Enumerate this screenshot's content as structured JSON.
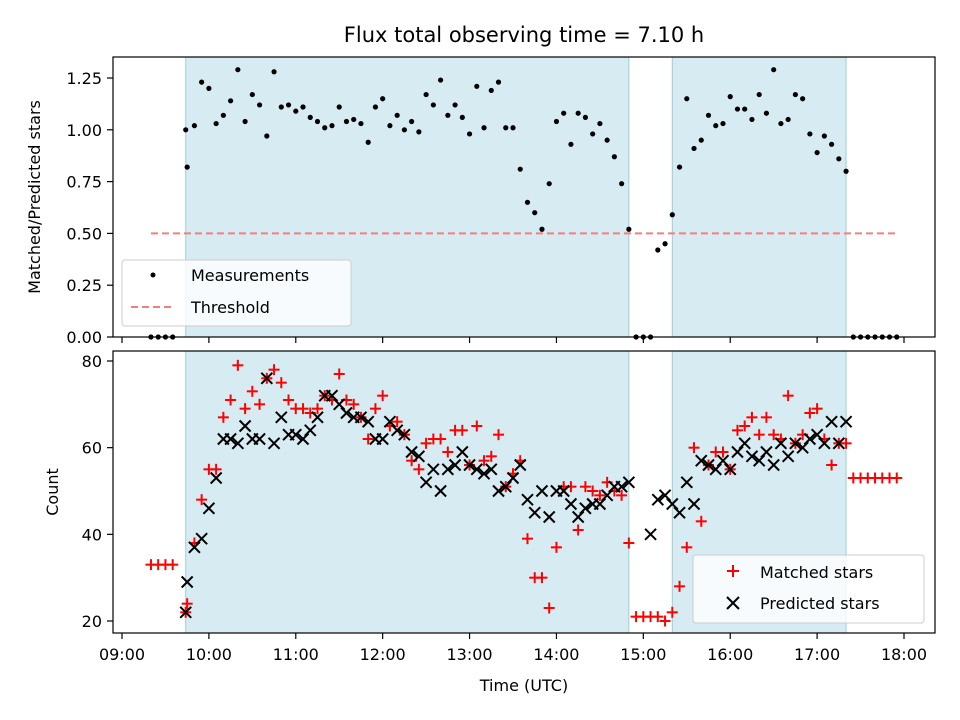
{
  "chart_data": [
    {
      "type": "scatter",
      "title": "Flux total observing time = 7.10 h",
      "ylabel": "Matched/Predicted stars",
      "xlabel": "",
      "x_range": [
        "09:00",
        "18:00"
      ],
      "ylim": [
        0,
        1.37
      ],
      "yticks": [
        0.0,
        0.25,
        0.5,
        0.75,
        1.0,
        1.25
      ],
      "ytick_labels": [
        "0.00",
        "0.25",
        "0.50",
        "0.75",
        "1.00",
        "1.25"
      ],
      "grid": false,
      "legend": "lower-left",
      "observing_periods": [
        [
          "09:44",
          "14:50"
        ],
        [
          "15:20",
          "17:20"
        ]
      ],
      "threshold": {
        "name": "Threshold",
        "y": 0.5,
        "x": [
          "09:20",
          "17:56"
        ],
        "color": "#f08080"
      },
      "measurements": {
        "name": "Measurements",
        "color": "#000000",
        "x": [
          "09:20",
          "09:25",
          "09:30",
          "09:35",
          "09:44",
          "09:45",
          "09:50",
          "09:55",
          "10:00",
          "10:05",
          "10:10",
          "10:15",
          "10:20",
          "10:25",
          "10:30",
          "10:35",
          "10:40",
          "10:45",
          "10:50",
          "10:55",
          "11:00",
          "11:05",
          "11:10",
          "11:15",
          "11:20",
          "11:25",
          "11:30",
          "11:35",
          "11:40",
          "11:45",
          "11:50",
          "11:55",
          "12:00",
          "12:05",
          "12:10",
          "12:15",
          "12:20",
          "12:25",
          "12:30",
          "12:35",
          "12:40",
          "12:45",
          "12:50",
          "12:55",
          "13:00",
          "13:05",
          "13:10",
          "13:15",
          "13:20",
          "13:25",
          "13:30",
          "13:35",
          "13:40",
          "13:45",
          "13:50",
          "13:55",
          "14:00",
          "14:05",
          "14:10",
          "14:15",
          "14:20",
          "14:25",
          "14:30",
          "14:35",
          "14:40",
          "14:45",
          "14:50",
          "14:55",
          "15:00",
          "15:05",
          "15:10",
          "15:15",
          "15:20",
          "15:25",
          "15:30",
          "15:35",
          "15:40",
          "15:45",
          "15:50",
          "15:55",
          "16:00",
          "16:05",
          "16:10",
          "16:15",
          "16:20",
          "16:25",
          "16:30",
          "16:35",
          "16:40",
          "16:45",
          "16:50",
          "16:55",
          "17:00",
          "17:05",
          "17:10",
          "17:15",
          "17:20",
          "17:25",
          "17:30",
          "17:35",
          "17:40",
          "17:45",
          "17:50",
          "17:55"
        ],
        "y": [
          0,
          0,
          0,
          0,
          1.0,
          0.82,
          1.02,
          1.23,
          1.2,
          1.03,
          1.07,
          1.14,
          1.29,
          1.04,
          1.17,
          1.12,
          0.97,
          1.28,
          1.11,
          1.12,
          1.09,
          1.11,
          1.06,
          1.04,
          1.01,
          1.02,
          1.11,
          1.04,
          1.05,
          1.03,
          0.94,
          1.11,
          1.15,
          1.02,
          1.07,
          1.0,
          1.04,
          0.99,
          1.17,
          1.12,
          1.24,
          1.07,
          1.12,
          1.06,
          0.98,
          1.21,
          1.01,
          1.19,
          1.23,
          1.01,
          1.01,
          0.81,
          0.65,
          0.6,
          0.52,
          0.74,
          1.04,
          1.08,
          0.93,
          1.08,
          1.06,
          0.98,
          1.03,
          0.95,
          0.87,
          0.74,
          0.52,
          0,
          0,
          0,
          0.42,
          0.45,
          0.59,
          0.82,
          1.15,
          0.91,
          0.95,
          1.07,
          1.02,
          1.03,
          1.16,
          1.1,
          1.1,
          1.05,
          1.17,
          1.08,
          1.29,
          1.03,
          1.05,
          1.17,
          1.15,
          0.98,
          0.89,
          0.97,
          0.93,
          0.86,
          0.8,
          0,
          0,
          0,
          0,
          0,
          0,
          0
        ]
      },
      "legend_entries": [
        "Measurements",
        "Threshold"
      ]
    },
    {
      "type": "scatter",
      "title": "",
      "ylabel": "Count",
      "xlabel": "Time (UTC)",
      "x_range": [
        "09:00",
        "18:00"
      ],
      "xticks": [
        "09:00",
        "10:00",
        "11:00",
        "12:00",
        "13:00",
        "14:00",
        "15:00",
        "16:00",
        "17:00",
        "18:00"
      ],
      "ylim": [
        17,
        82
      ],
      "yticks": [
        20,
        40,
        60,
        80
      ],
      "ytick_labels": [
        "20",
        "40",
        "60",
        "80"
      ],
      "grid": false,
      "legend": "lower-right",
      "observing_periods": [
        [
          "09:44",
          "14:50"
        ],
        [
          "15:20",
          "17:20"
        ]
      ],
      "series": [
        {
          "name": "Matched stars",
          "marker": "+",
          "color": "#ff0000",
          "x": [
            "09:20",
            "09:25",
            "09:30",
            "09:35",
            "09:44",
            "09:45",
            "09:50",
            "09:55",
            "10:00",
            "10:05",
            "10:10",
            "10:15",
            "10:20",
            "10:25",
            "10:30",
            "10:35",
            "10:40",
            "10:45",
            "10:50",
            "10:55",
            "11:00",
            "11:05",
            "11:10",
            "11:15",
            "11:20",
            "11:25",
            "11:30",
            "11:35",
            "11:40",
            "11:45",
            "11:50",
            "11:55",
            "12:00",
            "12:05",
            "12:10",
            "12:15",
            "12:20",
            "12:25",
            "12:30",
            "12:35",
            "12:40",
            "12:45",
            "12:50",
            "12:55",
            "13:00",
            "13:05",
            "13:10",
            "13:15",
            "13:20",
            "13:25",
            "13:30",
            "13:35",
            "13:40",
            "13:45",
            "13:50",
            "13:55",
            "14:00",
            "14:05",
            "14:10",
            "14:15",
            "14:20",
            "14:25",
            "14:30",
            "14:35",
            "14:40",
            "14:45",
            "14:50",
            "14:55",
            "15:00",
            "15:05",
            "15:10",
            "15:15",
            "15:20",
            "15:25",
            "15:30",
            "15:35",
            "15:40",
            "15:45",
            "15:50",
            "15:55",
            "16:00",
            "16:05",
            "16:10",
            "16:15",
            "16:20",
            "16:25",
            "16:30",
            "16:35",
            "16:40",
            "16:45",
            "16:50",
            "16:55",
            "17:00",
            "17:05",
            "17:10",
            "17:15",
            "17:20",
            "17:25",
            "17:30",
            "17:35",
            "17:40",
            "17:45",
            "17:50",
            "17:55"
          ],
          "y": [
            33,
            33,
            33,
            33,
            22,
            24,
            38,
            48,
            55,
            55,
            67,
            71,
            79,
            69,
            73,
            70,
            76,
            78,
            75,
            71,
            69,
            69,
            68,
            69,
            72,
            71,
            77,
            71,
            70,
            67,
            62,
            69,
            72,
            65,
            66,
            63,
            57,
            55,
            61,
            62,
            62,
            59,
            64,
            64,
            56,
            65,
            57,
            58,
            63,
            51,
            54,
            57,
            39,
            30,
            30,
            23,
            37,
            51,
            51,
            41,
            51,
            50,
            49,
            52,
            50,
            49,
            38,
            21,
            21,
            21,
            21,
            20,
            22,
            28,
            37,
            60,
            43,
            56,
            59,
            59,
            55,
            64,
            65,
            67,
            63,
            67,
            63,
            62,
            72,
            61,
            63,
            68,
            69,
            62,
            56,
            61,
            61,
            53,
            53,
            53,
            53,
            53,
            53,
            53
          ]
        },
        {
          "name": "Predicted stars",
          "marker": "x",
          "color": "#000000",
          "x": [
            "09:44",
            "09:45",
            "09:50",
            "09:55",
            "10:00",
            "10:05",
            "10:10",
            "10:15",
            "10:20",
            "10:25",
            "10:30",
            "10:35",
            "10:40",
            "10:45",
            "10:50",
            "10:55",
            "11:00",
            "11:05",
            "11:10",
            "11:15",
            "11:20",
            "11:25",
            "11:30",
            "11:35",
            "11:40",
            "11:45",
            "11:50",
            "11:55",
            "12:00",
            "12:05",
            "12:10",
            "12:15",
            "12:20",
            "12:25",
            "12:30",
            "12:35",
            "12:40",
            "12:45",
            "12:50",
            "12:55",
            "13:00",
            "13:05",
            "13:10",
            "13:15",
            "13:20",
            "13:25",
            "13:30",
            "13:35",
            "13:40",
            "13:45",
            "13:50",
            "13:55",
            "14:00",
            "14:05",
            "14:10",
            "14:15",
            "14:20",
            "14:25",
            "14:30",
            "14:35",
            "14:40",
            "14:45",
            "14:50",
            "15:05",
            "15:10",
            "15:15",
            "15:20",
            "15:25",
            "15:30",
            "15:35",
            "15:40",
            "15:45",
            "15:50",
            "15:55",
            "16:00",
            "16:05",
            "16:10",
            "16:15",
            "16:20",
            "16:25",
            "16:30",
            "16:35",
            "16:40",
            "16:45",
            "16:50",
            "16:55",
            "17:00",
            "17:05",
            "17:10",
            "17:15",
            "17:20"
          ],
          "y": [
            22,
            29,
            37,
            39,
            46,
            53,
            62,
            62,
            61,
            65,
            62,
            62,
            76,
            61,
            67,
            63,
            63,
            62,
            64,
            67,
            72,
            72,
            70,
            68,
            67,
            67,
            66,
            62,
            62,
            66,
            64,
            63,
            59,
            58,
            52,
            55,
            50,
            55,
            56,
            59,
            56,
            55,
            54,
            55,
            50,
            51,
            53,
            56,
            48,
            45,
            50,
            44,
            50,
            50,
            47,
            44,
            46,
            47,
            47,
            49,
            51,
            51,
            52,
            40,
            48,
            49,
            47,
            45,
            52,
            47,
            57,
            56,
            55,
            57,
            55,
            59,
            61,
            58,
            57,
            59,
            56,
            61,
            58,
            61,
            60,
            62,
            63,
            61,
            66,
            61,
            66
          ]
        }
      ]
    }
  ]
}
